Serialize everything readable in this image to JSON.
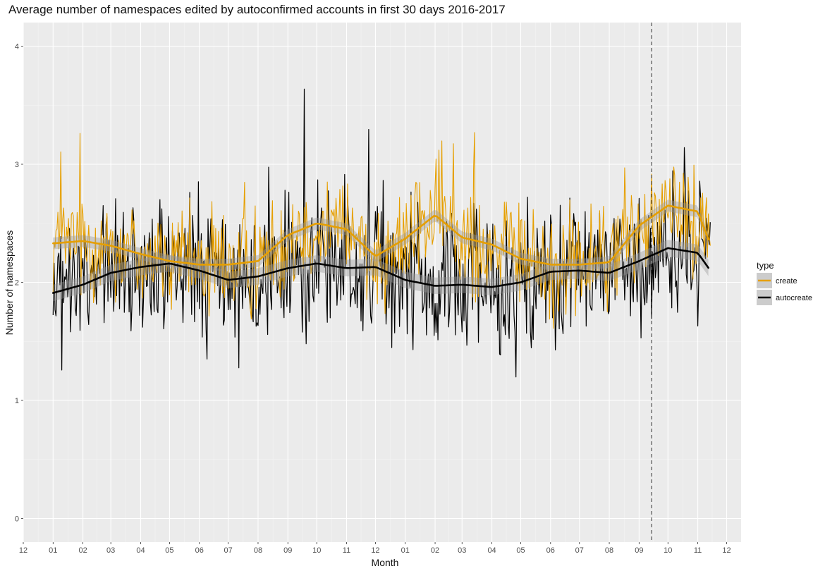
{
  "chart_data": {
    "type": "line",
    "title": "Average number of namespaces edited by autoconfirmed accounts in first 30 days 2016-2017",
    "xlabel": "Month",
    "ylabel": "Number of namespaces",
    "ylim": [
      -0.2,
      4.2
    ],
    "yticks": [
      0,
      1,
      2,
      3,
      4
    ],
    "xlim": [
      "2015-12-01",
      "2017-12-16"
    ],
    "x_tick_dates": [
      "2015-12-01",
      "2016-01-01",
      "2016-02-01",
      "2016-03-01",
      "2016-04-01",
      "2016-05-01",
      "2016-06-01",
      "2016-07-01",
      "2016-08-01",
      "2016-09-01",
      "2016-10-01",
      "2016-11-01",
      "2016-12-01",
      "2017-01-01",
      "2017-02-01",
      "2017-03-01",
      "2017-04-01",
      "2017-05-01",
      "2017-06-01",
      "2017-07-01",
      "2017-08-01",
      "2017-09-01",
      "2017-10-01",
      "2017-11-01",
      "2017-12-01"
    ],
    "x_tick_labels": [
      "12",
      "01",
      "02",
      "03",
      "04",
      "05",
      "06",
      "07",
      "08",
      "09",
      "10",
      "11",
      "12",
      "01",
      "02",
      "03",
      "04",
      "05",
      "06",
      "07",
      "08",
      "09",
      "10",
      "11",
      "12"
    ],
    "vline_date": "2017-09-14",
    "grid": true,
    "legend": {
      "title": "type",
      "position": "right"
    },
    "series": [
      {
        "name": "create",
        "color": "#E69F00",
        "smooth_dates": [
          "2016-01-01",
          "2016-02-01",
          "2016-03-01",
          "2016-04-01",
          "2016-05-01",
          "2016-06-01",
          "2016-07-01",
          "2016-08-01",
          "2016-09-01",
          "2016-10-01",
          "2016-11-01",
          "2016-12-01",
          "2017-01-01",
          "2017-02-01",
          "2017-03-01",
          "2017-04-01",
          "2017-05-01",
          "2017-06-01",
          "2017-07-01",
          "2017-08-01",
          "2017-09-01",
          "2017-10-01",
          "2017-11-01",
          "2017-11-14"
        ],
        "smooth_values": [
          2.33,
          2.35,
          2.31,
          2.24,
          2.18,
          2.15,
          2.15,
          2.18,
          2.4,
          2.5,
          2.45,
          2.22,
          2.37,
          2.57,
          2.38,
          2.32,
          2.2,
          2.15,
          2.15,
          2.17,
          2.48,
          2.65,
          2.6,
          2.32
        ],
        "band_half_width": 0.05,
        "daily_level": 2.3,
        "daily_spread": 0.32
      },
      {
        "name": "autocreate",
        "color": "#000000",
        "smooth_dates": [
          "2016-01-01",
          "2016-02-01",
          "2016-03-01",
          "2016-04-01",
          "2016-05-01",
          "2016-06-01",
          "2016-07-01",
          "2016-08-01",
          "2016-09-01",
          "2016-10-01",
          "2016-11-01",
          "2016-12-01",
          "2017-01-01",
          "2017-02-01",
          "2017-03-01",
          "2017-04-01",
          "2017-05-01",
          "2017-06-01",
          "2017-07-01",
          "2017-08-01",
          "2017-09-01",
          "2017-10-01",
          "2017-11-01",
          "2017-11-14"
        ],
        "smooth_values": [
          1.91,
          1.98,
          2.08,
          2.13,
          2.16,
          2.1,
          2.02,
          2.05,
          2.12,
          2.16,
          2.12,
          2.13,
          2.02,
          1.97,
          1.98,
          1.96,
          2.0,
          2.09,
          2.1,
          2.08,
          2.18,
          2.29,
          2.25,
          2.1
        ],
        "band_half_width": 0.07,
        "daily_level": 2.05,
        "daily_spread": 0.42
      }
    ]
  }
}
